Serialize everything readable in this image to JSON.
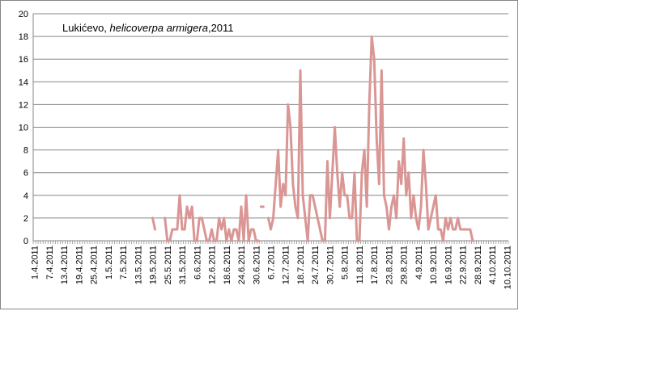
{
  "chart_data": {
    "type": "line",
    "title": "Lukićevo, helicoverpa armigera,2011",
    "title_parts": {
      "place": "Lukićevo, ",
      "species": "helicoverpa  armigera",
      "year": ",2011"
    },
    "ylim": [
      0,
      20
    ],
    "y_ticks": [
      "0",
      "2",
      "4",
      "6",
      "8",
      "10",
      "12",
      "14",
      "16",
      "18",
      "20"
    ],
    "x_labels": [
      "1.4.2011",
      "7.4.2011",
      "13.4.2011",
      "19.4.2011",
      "25.4.2011",
      "1.5.2011",
      "7.5.2011",
      "13.5.2011",
      "19.5.2011",
      "25.5.2011",
      "31.5.2011",
      "6.6.2011",
      "12.6.2011",
      "18.6.2011",
      "24.6.2011",
      "30.6.2011",
      "6.7.2011",
      "12.7.2011",
      "18.7.2011",
      "24.7.2011",
      "30.7.2011",
      "5.8.2011",
      "11.8.2011",
      "17.8.2011",
      "23.8.2011",
      "29.8.2011",
      "4.9.2011",
      "10.9.2011",
      "16.9.2011",
      "22.9.2011",
      "28.9.2011",
      "4.10.2011",
      "10.10.2011"
    ],
    "grid": true,
    "legend": "none",
    "line_color": "#d99694",
    "series": [
      {
        "segments": [
          {
            "start_day": 48,
            "values": [
              2,
              1
            ]
          },
          {
            "start_day": 53,
            "values": [
              2,
              0,
              0,
              1,
              1,
              1,
              4,
              1,
              1,
              3,
              2,
              3,
              0,
              0,
              2,
              2,
              1,
              0,
              0,
              1,
              0,
              0,
              2,
              1,
              2,
              0,
              1,
              0,
              1,
              1,
              0,
              3,
              0,
              4,
              0,
              1,
              1,
              0,
              0
            ]
          },
          {
            "start_day": 92,
            "values": [
              3,
              3
            ]
          },
          {
            "start_day": 95,
            "values": [
              2,
              1,
              2,
              5,
              8,
              3,
              5,
              4,
              12,
              10,
              5,
              3,
              2,
              15,
              4,
              2,
              0,
              4,
              4,
              3,
              2,
              1,
              0,
              0,
              7,
              2,
              6,
              10,
              6,
              3,
              6,
              4,
              4,
              2,
              2,
              6,
              0,
              0,
              6,
              8,
              3,
              12,
              18,
              16,
              9,
              5,
              15,
              4,
              3,
              1,
              3,
              4,
              2,
              7,
              5,
              9,
              4,
              6,
              2,
              4,
              2,
              1,
              3,
              8,
              5,
              1,
              2,
              3,
              4,
              1,
              1,
              0,
              2,
              1,
              2,
              1,
              1,
              2,
              1,
              1,
              1,
              1,
              1,
              0
            ]
          }
        ]
      }
    ]
  }
}
